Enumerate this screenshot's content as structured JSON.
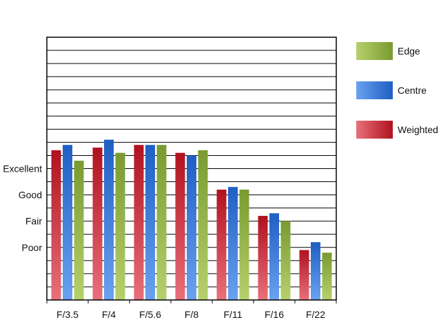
{
  "chart_data": {
    "type": "bar",
    "categories": [
      "F/3.5",
      "F/4",
      "F/5.6",
      "F/8",
      "F/11",
      "F/16",
      "F/22"
    ],
    "y_tick_labels": [
      {
        "value": 1,
        "label": "Poor"
      },
      {
        "value": 2,
        "label": "Fair"
      },
      {
        "value": 3,
        "label": "Good"
      },
      {
        "value": 4,
        "label": "Excellent"
      }
    ],
    "ylim": [
      -1,
      9
    ],
    "grid": true,
    "legend_position": "right",
    "series": [
      {
        "name": "Weighted",
        "values": [
          4.7,
          4.8,
          4.9,
          4.6,
          3.2,
          2.2,
          0.9
        ]
      },
      {
        "name": "Centre",
        "values": [
          4.9,
          5.1,
          4.9,
          4.5,
          3.3,
          2.3,
          1.2
        ]
      },
      {
        "name": "Edge",
        "values": [
          4.3,
          4.6,
          4.9,
          4.7,
          3.2,
          2.0,
          0.8
        ]
      }
    ],
    "legend_order": [
      "Edge",
      "Centre",
      "Weighted"
    ],
    "colors": {
      "Weighted": {
        "light": "#e8707a",
        "dark": "#b0121f"
      },
      "Centre": {
        "light": "#6aa2ef",
        "dark": "#1f5fc4"
      },
      "Edge": {
        "light": "#b6d16c",
        "dark": "#7a9a30"
      }
    },
    "frame_color": "#000000"
  }
}
